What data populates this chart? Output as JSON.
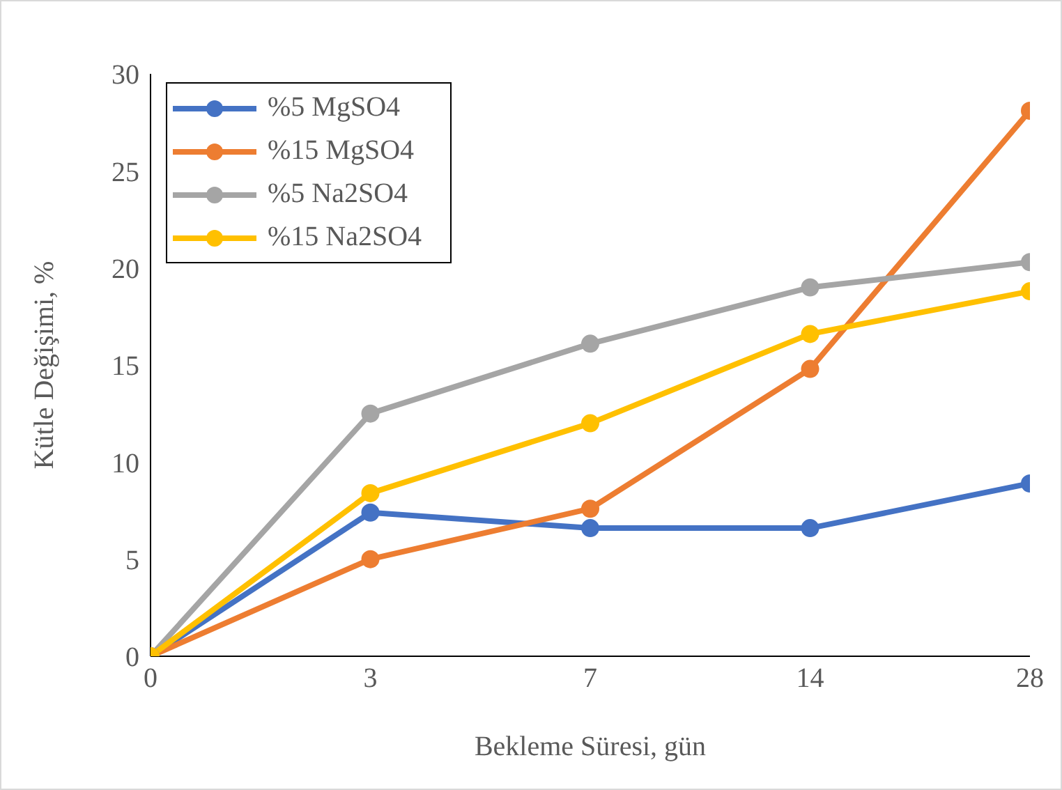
{
  "chart_data": {
    "type": "line",
    "xlabel": "Bekleme Süresi, gün",
    "ylabel": "Kütle Değişimi, %",
    "categories": [
      "0",
      "3",
      "7",
      "14",
      "28"
    ],
    "ylim": [
      0,
      30
    ],
    "yticks": [
      0,
      5,
      10,
      15,
      20,
      25,
      30
    ],
    "grid": false,
    "legend": "top left",
    "marker": "circle",
    "line_style": "solid",
    "series": [
      {
        "name": "%5 MgSO4",
        "color": "#4472c4",
        "values": [
          0,
          7.4,
          6.6,
          6.6,
          8.9
        ]
      },
      {
        "name": "%15 MgSO4",
        "color": "#ed7d31",
        "values": [
          0,
          5.0,
          7.6,
          14.8,
          28.1
        ]
      },
      {
        "name": "%5 Na2SO4",
        "color": "#a5a5a5",
        "values": [
          0,
          12.5,
          16.1,
          19.0,
          20.3
        ]
      },
      {
        "name": "%15 Na2SO4",
        "color": "#ffc000",
        "values": [
          0,
          8.4,
          12.0,
          16.6,
          18.8
        ]
      }
    ]
  }
}
